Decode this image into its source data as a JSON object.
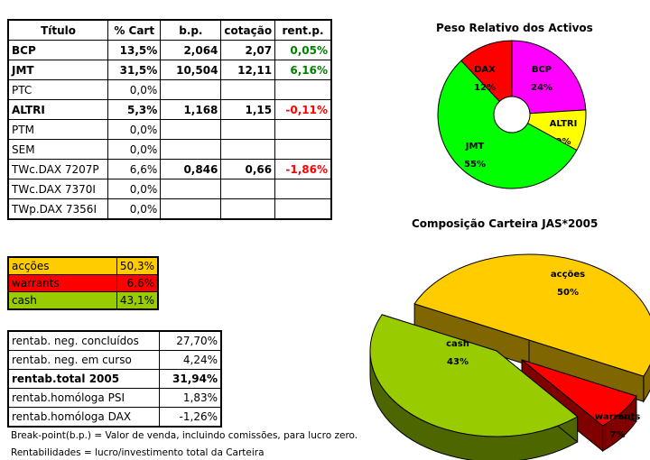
{
  "holdings_table": {
    "headers": [
      "Título",
      "% Cart",
      "b.p.",
      "cotação",
      "rent.p."
    ],
    "rows": [
      {
        "titulo": "BCP",
        "pct": "13,5%",
        "bp": "2,064",
        "cot": "2,07",
        "rent": "0,05%",
        "bold": true,
        "rent_sign": "pos"
      },
      {
        "titulo": "JMT",
        "pct": "31,5%",
        "bp": "10,504",
        "cot": "12,11",
        "rent": "6,16%",
        "bold": true,
        "rent_sign": "pos"
      },
      {
        "titulo": "PTC",
        "pct": "0,0%",
        "bp": "",
        "cot": "",
        "rent": "",
        "bold": false,
        "rent_sign": ""
      },
      {
        "titulo": "ALTRI",
        "pct": "5,3%",
        "bp": "1,168",
        "cot": "1,15",
        "rent": "-0,11%",
        "bold": true,
        "rent_sign": "neg"
      },
      {
        "titulo": "PTM",
        "pct": "0,0%",
        "bp": "",
        "cot": "",
        "rent": "",
        "bold": false,
        "rent_sign": ""
      },
      {
        "titulo": "SEM",
        "pct": "0,0%",
        "bp": "",
        "cot": "",
        "rent": "",
        "bold": false,
        "rent_sign": ""
      },
      {
        "titulo": "TWc.DAX 7207P",
        "pct": "6,6%",
        "bp": "0,846",
        "cot": "0,66",
        "rent": "-1,86%",
        "bold": false,
        "rent_sign": "neg"
      },
      {
        "titulo": "TWc.DAX 7370I",
        "pct": "0,0%",
        "bp": "",
        "cot": "",
        "rent": "",
        "bold": false,
        "rent_sign": ""
      },
      {
        "titulo": "TWp.DAX 7356I",
        "pct": "0,0%",
        "bp": "",
        "cot": "",
        "rent": "",
        "bold": false,
        "rent_sign": ""
      }
    ]
  },
  "allocation_table": {
    "rows": [
      {
        "label": "acções",
        "value": "50,3%",
        "color": "#ffcc00"
      },
      {
        "label": "warrants",
        "value": "6,6%",
        "color": "#ff0000"
      },
      {
        "label": "cash",
        "value": "43,1%",
        "color": "#99cc00"
      }
    ]
  },
  "returns_table": {
    "rows": [
      {
        "label": "rentab. neg. concluídos",
        "value": "27,70%",
        "bold": false
      },
      {
        "label": "rentab. neg. em curso",
        "value": "4,24%",
        "bold": false
      },
      {
        "label": "rentab.total 2005",
        "value": "31,94%",
        "bold": true
      },
      {
        "label": "rentab.homóloga PSI",
        "value": "1,83%",
        "bold": false
      },
      {
        "label": "rentab.homóloga DAX",
        "value": "-1,26%",
        "bold": false
      }
    ]
  },
  "notes": {
    "line1": "Break-point(b.p.) = Valor de venda, incluindo comissões, para lucro zero.",
    "line2": "Rentabilidades = lucro/investimento total da Carteira"
  },
  "chart_data": [
    {
      "type": "pie",
      "variant": "doughnut",
      "title": "Peso Relativo dos Activos",
      "categories": [
        "BCP",
        "ALTRI",
        "JMT",
        "DAX"
      ],
      "values": [
        24,
        9,
        55,
        12
      ],
      "labels": [
        "24%",
        "9%",
        "55%",
        "12%"
      ],
      "colors": [
        "#ff00ff",
        "#ffff00",
        "#00ff00",
        "#ff0000"
      ]
    },
    {
      "type": "pie",
      "variant": "3d-exploded",
      "title": "Composição Carteira JAS*2005",
      "categories": [
        "acções",
        "warrants",
        "cash"
      ],
      "values": [
        50,
        7,
        43
      ],
      "labels": [
        "50%",
        "7%",
        "43%"
      ],
      "colors": [
        "#ffcc00",
        "#ff0000",
        "#99cc00"
      ]
    }
  ]
}
